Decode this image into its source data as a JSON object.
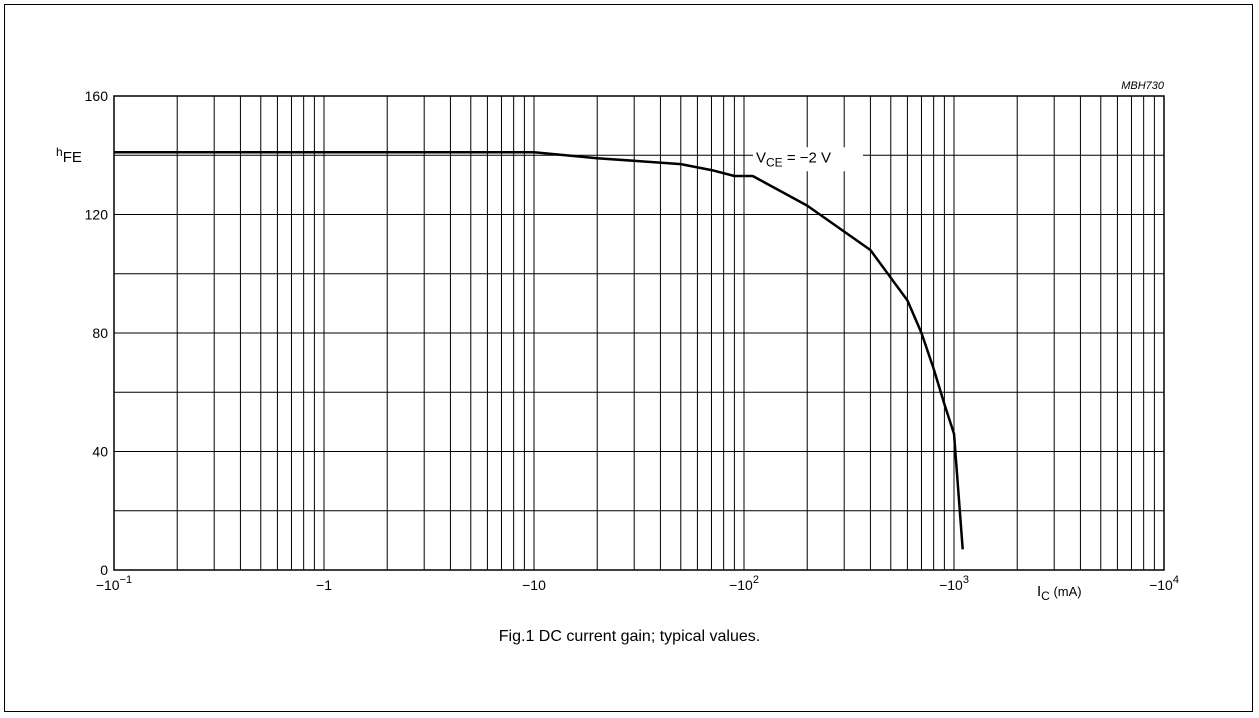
{
  "figure_code": "MBH730",
  "caption": "Fig.1  DC current gain; typical values.",
  "chart_data": {
    "type": "line",
    "xscale": "log",
    "xlim_abs_mA": [
      0.1,
      10000
    ],
    "ylim": [
      0,
      160
    ],
    "ylabel": {
      "main": "h",
      "sub": "FE"
    },
    "xlabel": {
      "main": "I",
      "sub": "C",
      "unit": " (mA)"
    },
    "y_ticks": [
      {
        "value": 0,
        "label": "0"
      },
      {
        "value": 40,
        "label": "40"
      },
      {
        "value": 80,
        "label": "80"
      },
      {
        "value": 120,
        "label": "120"
      },
      {
        "value": 160,
        "label": "160"
      }
    ],
    "y_grid_step": 20,
    "x_ticks": [
      {
        "value": 0.1,
        "mant": "−10",
        "exp": "−1"
      },
      {
        "value": 1,
        "mant": "−1",
        "exp": ""
      },
      {
        "value": 10,
        "mant": "−10",
        "exp": ""
      },
      {
        "value": 100,
        "mant": "−10",
        "exp": "2"
      },
      {
        "value": 1000,
        "mant": "−10",
        "exp": "3"
      },
      {
        "value": 10000,
        "mant": "−10",
        "exp": "4"
      }
    ],
    "grid": true,
    "series": [
      {
        "annotation": {
          "main": "V",
          "sub": "CE",
          "rest": " = −2 V"
        },
        "x": [
          0.1,
          1,
          10,
          20,
          50,
          70,
          90,
          110,
          200,
          400,
          600,
          700,
          800,
          900,
          1000,
          1100
        ],
        "y": [
          141,
          141,
          141,
          139,
          137,
          135,
          133,
          133,
          123,
          108,
          91,
          80,
          68,
          56,
          46,
          7
        ]
      }
    ]
  }
}
